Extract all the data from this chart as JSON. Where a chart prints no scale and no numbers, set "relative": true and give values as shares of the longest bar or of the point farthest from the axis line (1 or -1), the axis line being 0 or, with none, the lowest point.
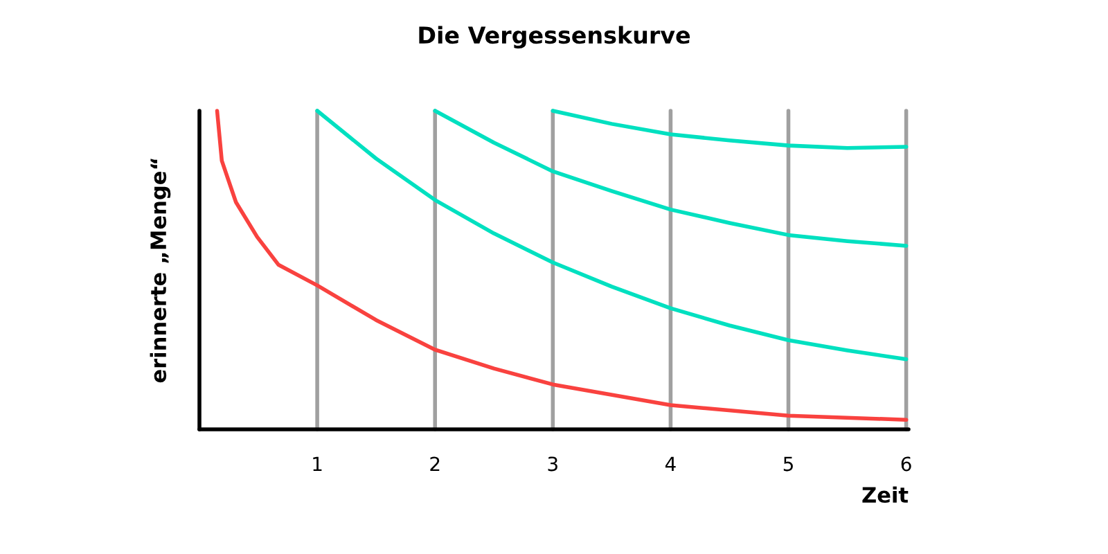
{
  "chart_data": {
    "type": "line",
    "title": "Die Vergessenskurve",
    "xlabel": "Zeit",
    "ylabel": "erinnerte „Menge“",
    "relative": true,
    "xlim": [
      0,
      6.02
    ],
    "xticks": [
      1,
      2,
      3,
      4,
      5,
      6
    ],
    "grid": false,
    "legend": false,
    "marker": "none",
    "line_style": "solid",
    "series": [
      {
        "color": "#f9423f",
        "x": [
          0.15,
          0.19,
          0.31,
          0.49,
          0.67,
          1,
          1.5,
          2,
          2.5,
          3,
          4,
          5,
          6
        ],
        "values": [
          1,
          0.843,
          0.713,
          0.604,
          0.517,
          0.452,
          0.343,
          0.25,
          0.191,
          0.141,
          0.076,
          0.043,
          0.03
        ]
      },
      {
        "color": "#00e0c0",
        "x": [
          1,
          1.5,
          2,
          2.5,
          3,
          3.5,
          4,
          4.5,
          5,
          5.5,
          6
        ],
        "values": [
          1,
          0.85,
          0.72,
          0.615,
          0.524,
          0.448,
          0.38,
          0.326,
          0.28,
          0.248,
          0.22
        ]
      },
      {
        "color": "#00e0c0",
        "x": [
          2,
          2.5,
          3,
          3.5,
          4,
          4.5,
          5,
          5.5,
          6
        ],
        "values": [
          1,
          0.9,
          0.81,
          0.748,
          0.69,
          0.648,
          0.61,
          0.591,
          0.576
        ]
      },
      {
        "color": "#00e0c0",
        "x": [
          3,
          3.5,
          4,
          4.5,
          5,
          5.5,
          6
        ],
        "values": [
          1,
          0.959,
          0.926,
          0.907,
          0.891,
          0.883,
          0.887
        ]
      }
    ],
    "ref_lines": [
      {
        "axis": "x",
        "value": 1,
        "color": "#a0a0a0"
      },
      {
        "axis": "x",
        "value": 2,
        "color": "#a0a0a0"
      },
      {
        "axis": "x",
        "value": 3,
        "color": "#a0a0a0"
      },
      {
        "axis": "x",
        "value": 4,
        "color": "#a0a0a0"
      },
      {
        "axis": "x",
        "value": 5,
        "color": "#a0a0a0"
      },
      {
        "axis": "x",
        "value": 6,
        "color": "#a0a0a0"
      }
    ]
  }
}
